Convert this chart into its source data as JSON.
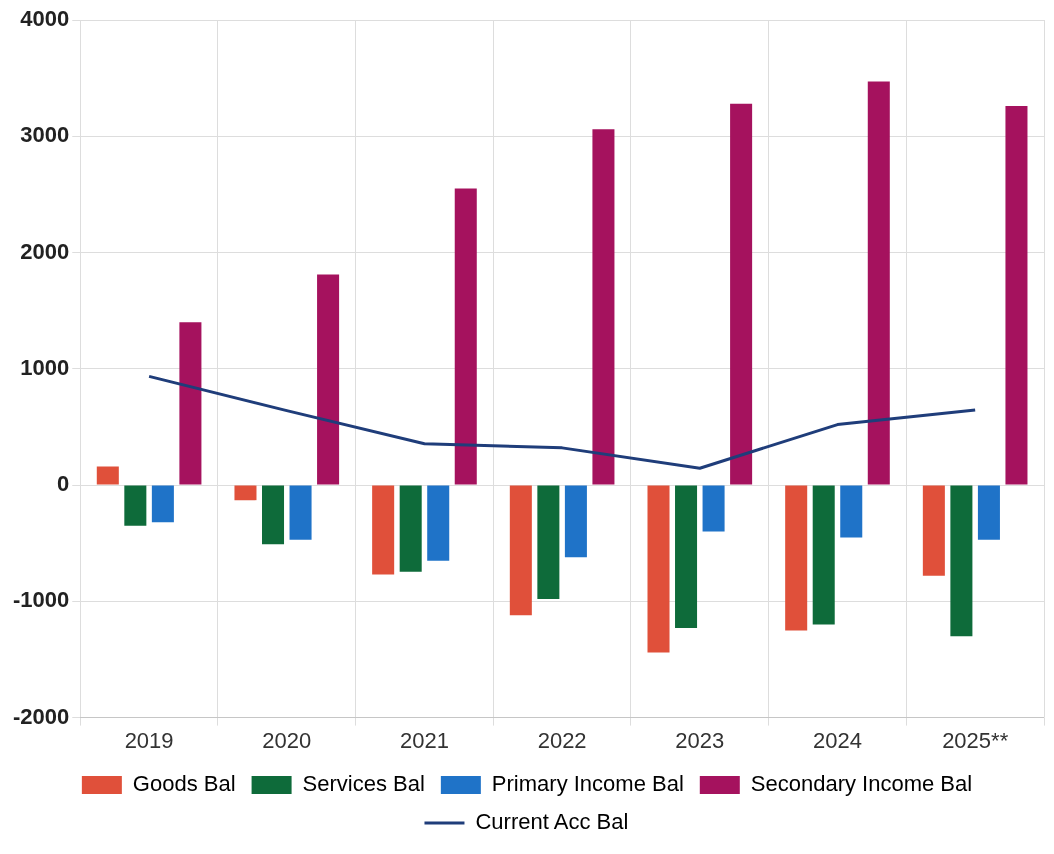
{
  "chart_data": {
    "type": "bar",
    "categories": [
      "2019",
      "2020",
      "2021",
      "2022",
      "2023",
      "2024",
      "2025**"
    ],
    "series": [
      {
        "name": "Goods Bal",
        "color": "#e0503a",
        "values": [
          160,
          -130,
          -770,
          -1120,
          -1440,
          -1250,
          -780
        ]
      },
      {
        "name": "Services Bal",
        "color": "#0e6b3a",
        "values": [
          -350,
          -510,
          -745,
          -980,
          -1230,
          -1200,
          -1300
        ]
      },
      {
        "name": "Primary Income Bal",
        "color": "#1f73c8",
        "values": [
          -320,
          -470,
          -650,
          -620,
          -400,
          -450,
          -470
        ]
      },
      {
        "name": "Secondary Income Bal",
        "color": "#a5125e",
        "values": [
          1400,
          1810,
          2550,
          3060,
          3280,
          3470,
          3260
        ]
      },
      {
        "name": "Current Acc Bal",
        "type": "line",
        "color": "#1f3d7a",
        "values": [
          935,
          640,
          355,
          320,
          145,
          520,
          645
        ]
      }
    ],
    "ylim": [
      -2000,
      4000
    ],
    "yticks": [
      -2000,
      -1000,
      0,
      1000,
      2000,
      3000,
      4000
    ],
    "grid": true,
    "legend": "bottom",
    "marker": "none"
  }
}
